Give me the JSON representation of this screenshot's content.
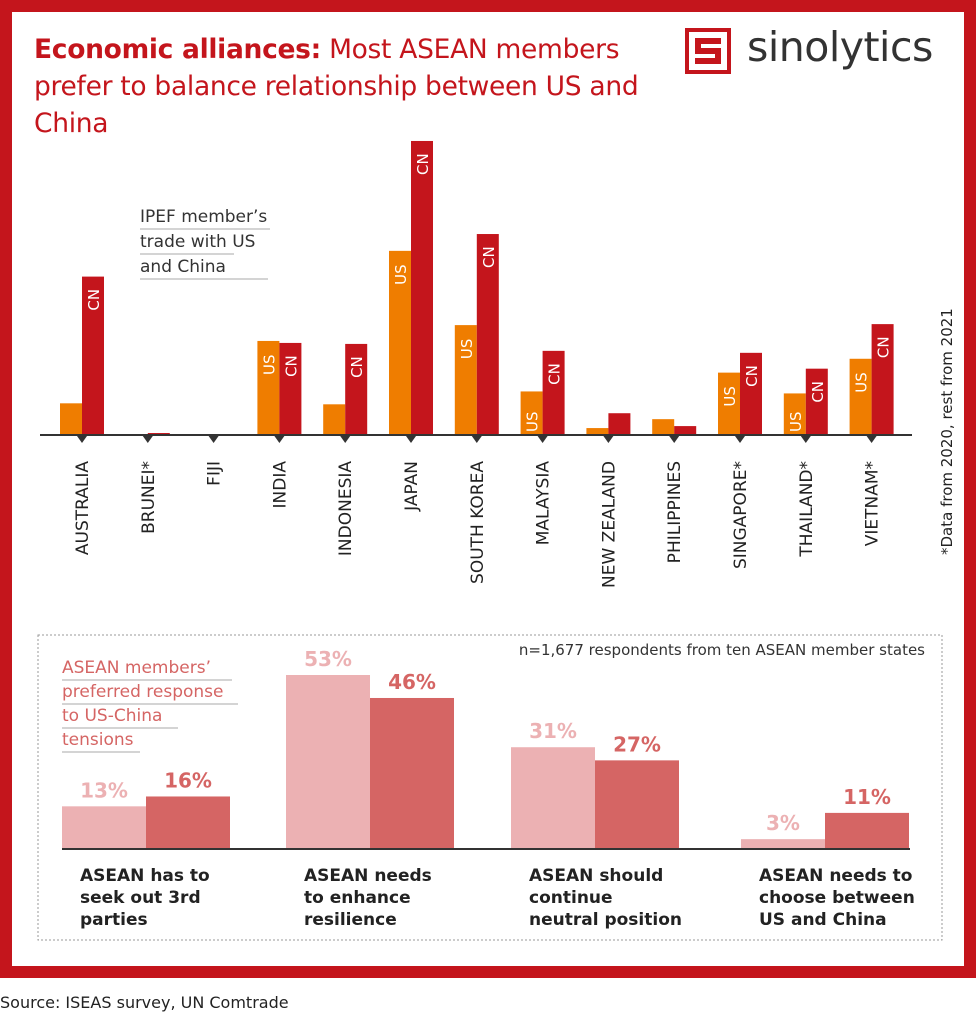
{
  "header": {
    "title_bold": "Economic alliances:",
    "title_rest": " Most ASEAN members prefer to balance relationship between US and China",
    "logo_text": "sinolytics"
  },
  "footnote": "*Data from 2020, rest from 2021",
  "source": "Source: ISEAS survey, UN Comtrade",
  "colors": {
    "frame": "#c4151c",
    "us": "#ef7d00",
    "cn": "#c4151c",
    "survey_light": "#ecb1b3",
    "survey_dark": "#d56564"
  },
  "chart_data": [
    {
      "type": "bar",
      "title": "IPEF member’s trade with US and China",
      "categories": [
        "AUSTRALIA",
        "BRUNEI*",
        "FIJI",
        "INDIA",
        "INDONESIA",
        "JAPAN",
        "SOUTH KOREA",
        "MALAYSIA",
        "NEW ZEALAND",
        "PHILIPPINES",
        "SINGAPORE*",
        "THAILAND*",
        "VIETNAM*"
      ],
      "series": [
        {
          "name": "US",
          "values": [
            32,
            0,
            0,
            95,
            31,
            186,
            111,
            44,
            7,
            16,
            63,
            42,
            77
          ],
          "label": "US"
        },
        {
          "name": "CN",
          "values": [
            160,
            2,
            0,
            93,
            92,
            297,
            203,
            85,
            22,
            9,
            83,
            67,
            112
          ],
          "label": "CN"
        }
      ],
      "ylim": [
        0,
        300
      ],
      "grid": false,
      "axis_labels_shown": false
    },
    {
      "type": "bar",
      "title": "ASEAN members’ preferred response to US-China tensions",
      "note": "n=1,677 respondents from ten ASEAN member states",
      "categories": [
        "ASEAN has to seek out 3rd parties",
        "ASEAN needs to enhance resilience",
        "ASEAN should continue neutral position",
        "ASEAN needs to choose between US and China"
      ],
      "category_lines": [
        [
          "ASEAN has to",
          "seek out 3rd",
          "parties"
        ],
        [
          "ASEAN needs",
          "to enhance",
          "resilience"
        ],
        [
          "ASEAN should",
          "continue",
          "neutral position"
        ],
        [
          "ASEAN needs to",
          "choose between",
          "US and China"
        ]
      ],
      "series": [
        {
          "values": [
            13,
            53,
            31,
            3
          ],
          "labels": [
            "13%",
            "53%",
            "31%",
            "3%"
          ]
        },
        {
          "values": [
            16,
            46,
            27,
            11
          ],
          "labels": [
            "16%",
            "46%",
            "27%",
            "11%"
          ]
        }
      ],
      "unit": "%"
    }
  ]
}
